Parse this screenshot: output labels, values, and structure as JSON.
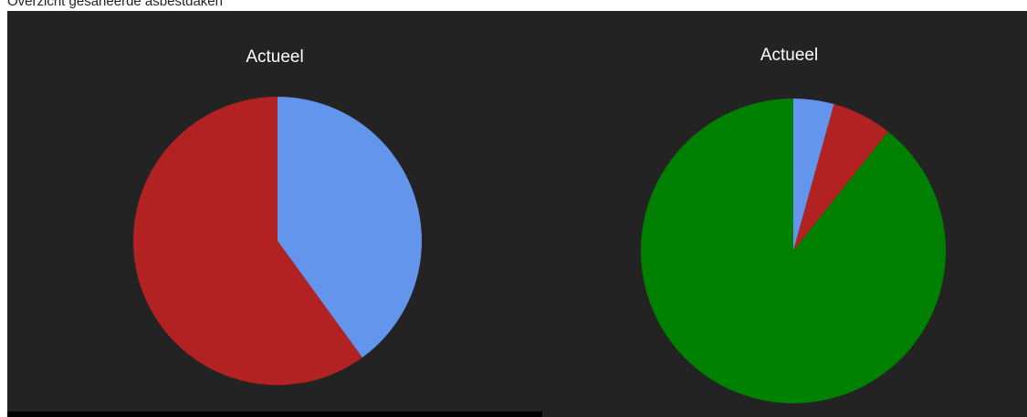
{
  "page": {
    "heading": "Overzicht gesaneerde asbestdaken"
  },
  "chart_data": [
    {
      "type": "pie",
      "title": "Actueel",
      "slices": [
        {
          "value": 40,
          "color": "#6495ed"
        },
        {
          "value": 60,
          "color": "#b22222"
        }
      ]
    },
    {
      "type": "pie",
      "title": "Actueel",
      "slices": [
        {
          "value": 4.3,
          "color": "#6495ed"
        },
        {
          "value": 6.4,
          "color": "#b22222"
        },
        {
          "value": 89.3,
          "color": "#008000"
        }
      ]
    }
  ]
}
